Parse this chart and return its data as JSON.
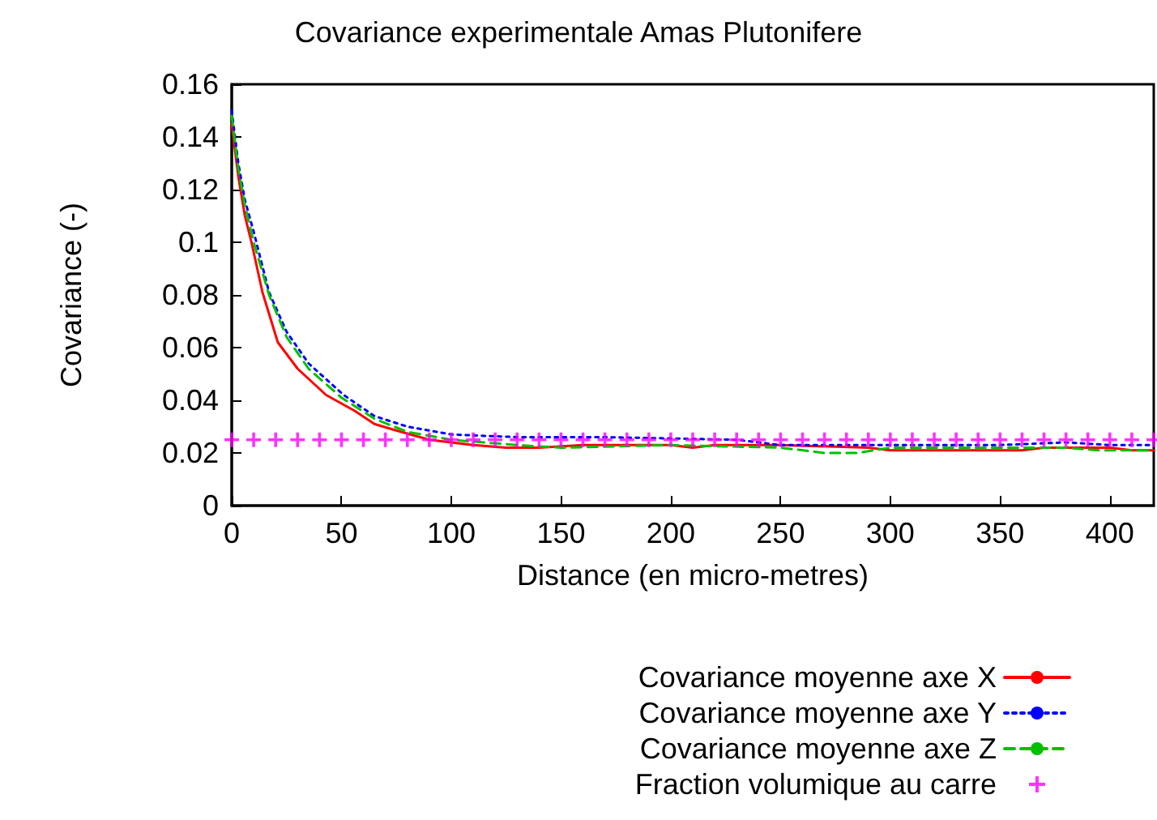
{
  "chart_data": {
    "type": "line",
    "title": "Covariance experimentale Amas Plutonifere",
    "xlabel": "Distance (en micro-metres)",
    "ylabel": "Covariance (-)",
    "xlim": [
      0,
      420
    ],
    "xticks": [
      0,
      50,
      100,
      150,
      200,
      250,
      300,
      350,
      400
    ],
    "ylim": [
      0,
      0.16
    ],
    "yticks": [
      0,
      0.02,
      0.04,
      0.06,
      0.08,
      0.1,
      0.12,
      0.14,
      0.16
    ],
    "grid": false,
    "legend": "bottom",
    "marker": "none",
    "series": [
      {
        "name": "Covariance moyenne axe X",
        "color": "#ff0000",
        "line_style": "solid",
        "x": [
          0,
          3,
          6,
          9,
          14,
          21,
          30,
          43,
          56,
          65,
          73,
          90,
          110,
          125,
          140,
          160,
          200,
          210,
          220,
          250,
          290,
          300,
          340,
          360,
          370,
          400,
          410,
          420
        ],
        "values": [
          0.145,
          0.125,
          0.11,
          0.1,
          0.081,
          0.062,
          0.052,
          0.042,
          0.036,
          0.031,
          0.029,
          0.025,
          0.023,
          0.022,
          0.022,
          0.023,
          0.023,
          0.022,
          0.023,
          0.023,
          0.022,
          0.021,
          0.021,
          0.021,
          0.022,
          0.022,
          0.021,
          0.021
        ]
      },
      {
        "name": "Covariance moyenne axe Y",
        "color": "#0000ff",
        "line_style": "dotted",
        "x": [
          0,
          3,
          6,
          10,
          17,
          25,
          35,
          51,
          65,
          80,
          100,
          130,
          170,
          230,
          250,
          300,
          350,
          380,
          400,
          420
        ],
        "values": [
          0.15,
          0.13,
          0.116,
          0.104,
          0.081,
          0.066,
          0.054,
          0.042,
          0.034,
          0.03,
          0.027,
          0.026,
          0.026,
          0.025,
          0.023,
          0.023,
          0.023,
          0.024,
          0.023,
          0.023
        ]
      },
      {
        "name": "Covariance moyenne axe Z",
        "color": "#00c000",
        "line_style": "dashed",
        "x": [
          0,
          3,
          6,
          10,
          17,
          25,
          35,
          50,
          65,
          80,
          100,
          130,
          150,
          200,
          250,
          270,
          285,
          300,
          350,
          380,
          395,
          420
        ],
        "values": [
          0.148,
          0.128,
          0.114,
          0.1,
          0.08,
          0.064,
          0.052,
          0.041,
          0.033,
          0.028,
          0.025,
          0.023,
          0.022,
          0.023,
          0.022,
          0.02,
          0.02,
          0.022,
          0.022,
          0.022,
          0.021,
          0.021
        ]
      },
      {
        "name": "Fraction volumique au carre",
        "type": "scatter",
        "marker": "cross",
        "color": "#ff00ff",
        "x": [
          0,
          10,
          20,
          30,
          40,
          50,
          60,
          70,
          80,
          90,
          100,
          110,
          120,
          130,
          140,
          150,
          160,
          170,
          180,
          190,
          200,
          210,
          220,
          230,
          240,
          250,
          260,
          270,
          280,
          290,
          300,
          310,
          320,
          330,
          340,
          350,
          360,
          370,
          380,
          390,
          400,
          410,
          420
        ],
        "values": [
          0.025,
          0.025,
          0.025,
          0.025,
          0.025,
          0.025,
          0.025,
          0.025,
          0.025,
          0.025,
          0.025,
          0.025,
          0.025,
          0.025,
          0.025,
          0.025,
          0.025,
          0.025,
          0.025,
          0.025,
          0.025,
          0.025,
          0.025,
          0.025,
          0.025,
          0.025,
          0.025,
          0.025,
          0.025,
          0.025,
          0.025,
          0.025,
          0.025,
          0.025,
          0.025,
          0.025,
          0.025,
          0.025,
          0.025,
          0.025,
          0.025,
          0.025,
          0.025
        ]
      }
    ]
  }
}
